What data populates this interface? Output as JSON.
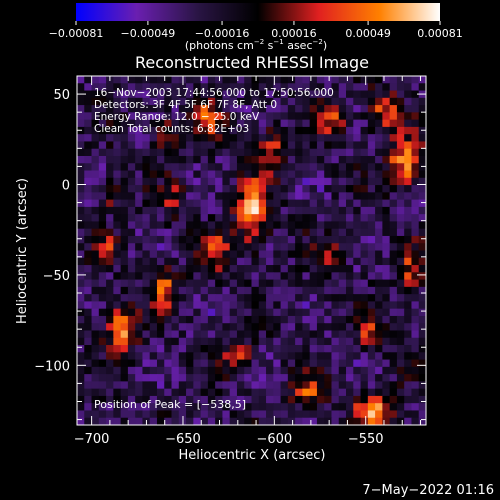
{
  "chart_data": {
    "type": "heatmap",
    "title": "Reconstructed RHESSI Image",
    "xlabel": "Heliocentric X (arcsec)",
    "ylabel": "Heliocentric Y (arcsec)",
    "xlim": [
      -708,
      -517
    ],
    "ylim": [
      -133,
      60
    ],
    "x_ticks": [
      -700,
      -650,
      -600,
      -550
    ],
    "y_ticks": [
      50,
      0,
      -50,
      -100
    ],
    "x_tick_labels": [
      "−700",
      "−650",
      "−600",
      "−550"
    ],
    "y_tick_labels": [
      "50",
      "0",
      "−50",
      "−100"
    ],
    "colorbar": {
      "min": -0.00081,
      "max": 0.00081,
      "ticks": [
        -0.00081,
        -0.00049,
        -0.00016,
        0.00016,
        0.00049,
        0.00081
      ],
      "tick_labels": [
        "−0.00081",
        "−0.00049",
        "−0.00016",
        "0.00016",
        "0.00049",
        "0.00081"
      ],
      "unit_label_parts": [
        "(photons cm",
        "−2",
        " s",
        "−1",
        " asec",
        "−2",
        ")"
      ],
      "stops": [
        "#0000ff",
        "#6a1fb0",
        "#2a1545",
        "#000000",
        "#e02020",
        "#ff8000",
        "#ffffff"
      ]
    },
    "annotations": [
      "16−Nov−2003 17:44:56.000 to 17:50:56.000",
      "Detectors: 3F 4F 5F 6F 7F 8F, Att 0",
      "Energy Range: 12.0 − 25.0 keV",
      "Clean     Total counts: 6.82E+03"
    ],
    "peak_label": "Position of Peak = [−538,5]",
    "grid": false,
    "image_grid": {
      "cols": 48,
      "rows": 48,
      "background_value": -0.00025,
      "sources": [
        {
          "x": -612,
          "y": -15,
          "amp": 0.00082,
          "sx": 6,
          "sy": 13
        },
        {
          "x": -602,
          "y": 18,
          "amp": 0.00055,
          "sx": 5,
          "sy": 9
        },
        {
          "x": -528,
          "y": 12,
          "amp": 0.00078,
          "sx": 7,
          "sy": 10
        },
        {
          "x": -540,
          "y": 40,
          "amp": 0.0006,
          "sx": 6,
          "sy": 8
        },
        {
          "x": -568,
          "y": 35,
          "amp": 0.00052,
          "sx": 5,
          "sy": 7
        },
        {
          "x": -636,
          "y": 37,
          "amp": 0.00062,
          "sx": 5,
          "sy": 7
        },
        {
          "x": -660,
          "y": 28,
          "amp": 0.00048,
          "sx": 5,
          "sy": 7
        },
        {
          "x": -684,
          "y": -80,
          "amp": 0.00075,
          "sx": 6,
          "sy": 9
        },
        {
          "x": -660,
          "y": -57,
          "amp": 0.00056,
          "sx": 5,
          "sy": 8
        },
        {
          "x": -693,
          "y": -35,
          "amp": 0.00042,
          "sx": 4,
          "sy": 6
        },
        {
          "x": -632,
          "y": -37,
          "amp": 0.00052,
          "sx": 5,
          "sy": 9
        },
        {
          "x": -545,
          "y": -125,
          "amp": 0.0008,
          "sx": 8,
          "sy": 7
        },
        {
          "x": -582,
          "y": -115,
          "amp": 0.00055,
          "sx": 6,
          "sy": 6
        },
        {
          "x": -525,
          "y": -50,
          "amp": 0.00055,
          "sx": 4,
          "sy": 10
        },
        {
          "x": -570,
          "y": -40,
          "amp": 0.00045,
          "sx": 5,
          "sy": 7
        },
        {
          "x": -548,
          "y": -82,
          "amp": 0.0005,
          "sx": 5,
          "sy": 6
        },
        {
          "x": -655,
          "y": -10,
          "amp": 0.0004,
          "sx": 4,
          "sy": 8
        },
        {
          "x": -690,
          "y": -5,
          "amp": 0.0004,
          "sx": 4,
          "sy": 6
        },
        {
          "x": -620,
          "y": -95,
          "amp": 0.00045,
          "sx": 6,
          "sy": 6
        }
      ]
    }
  },
  "footer": {
    "date": "7−May−2022 01:16"
  }
}
